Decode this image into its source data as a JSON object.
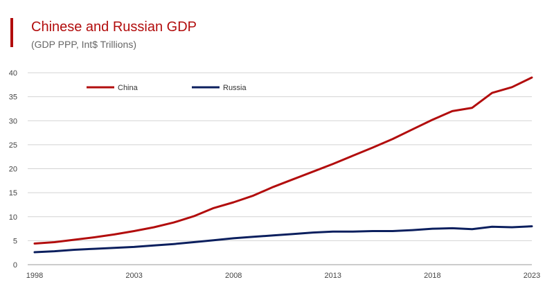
{
  "colors": {
    "china": "#b20d0d",
    "russia": "#0b1f5e",
    "grid": "#d3d3d3",
    "title": "#b20d0d"
  },
  "chart_data": {
    "type": "line",
    "title": "Chinese and Russian GDP",
    "subtitle": "(GDP PPP, Int$ Trillions)",
    "xlabel": "",
    "ylabel": "",
    "xlim": [
      1998,
      2023
    ],
    "ylim": [
      0,
      40
    ],
    "x_ticks": [
      1998,
      2003,
      2008,
      2013,
      2018,
      2023
    ],
    "y_ticks": [
      0,
      5,
      10,
      15,
      20,
      25,
      30,
      35,
      40
    ],
    "grid": true,
    "legend_position": "top-left",
    "x": [
      1998,
      1999,
      2000,
      2001,
      2002,
      2003,
      2004,
      2005,
      2006,
      2007,
      2008,
      2009,
      2010,
      2011,
      2012,
      2013,
      2014,
      2015,
      2016,
      2017,
      2018,
      2019,
      2020,
      2021,
      2022,
      2023
    ],
    "series": [
      {
        "name": "China",
        "color": "#b20d0d",
        "values": [
          4.4,
          4.7,
          5.2,
          5.7,
          6.3,
          7.0,
          7.8,
          8.8,
          10.1,
          11.8,
          13.0,
          14.4,
          16.2,
          17.8,
          19.4,
          21.0,
          22.7,
          24.4,
          26.2,
          28.2,
          30.2,
          32.0,
          32.7,
          35.8,
          37.0,
          39.0
        ]
      },
      {
        "name": "Russia",
        "color": "#0b1f5e",
        "values": [
          2.6,
          2.8,
          3.1,
          3.3,
          3.5,
          3.7,
          4.0,
          4.3,
          4.7,
          5.1,
          5.5,
          5.8,
          6.1,
          6.4,
          6.7,
          6.9,
          6.9,
          7.0,
          7.0,
          7.2,
          7.5,
          7.6,
          7.4,
          7.9,
          7.8,
          8.0
        ]
      }
    ]
  }
}
